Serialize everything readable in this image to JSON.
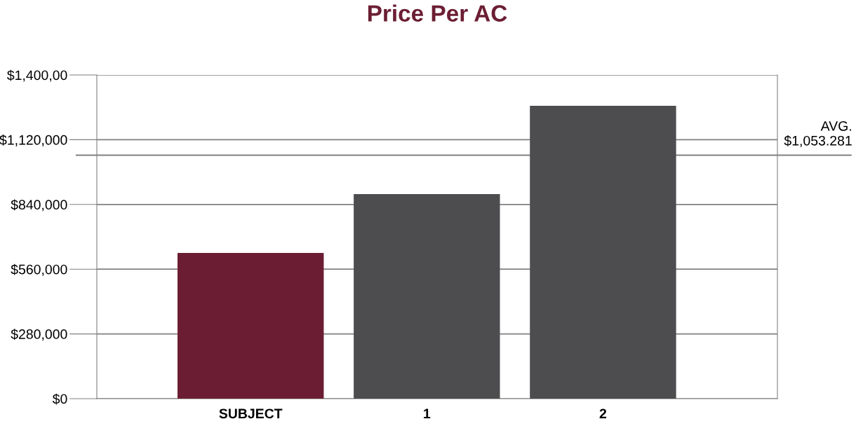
{
  "chart_data": {
    "type": "bar",
    "title": "Price Per AC",
    "categories": [
      "SUBJECT",
      "1",
      "2"
    ],
    "values": [
      630000,
      885000,
      1267000
    ],
    "colors": [
      "#6b1e33",
      "#4d4d4f",
      "#4d4d4f"
    ],
    "ylim": [
      0,
      1400000
    ],
    "yticks": [
      {
        "value": 0,
        "label": "$0"
      },
      {
        "value": 280000,
        "label": "$280,000"
      },
      {
        "value": 560000,
        "label": "$560,000"
      },
      {
        "value": 840000,
        "label": "$840,000"
      },
      {
        "value": 1120000,
        "label": "$1,120,000"
      },
      {
        "value": 1400000,
        "label": "$1,400,00"
      }
    ],
    "grid": "y",
    "ref_lines": [
      {
        "axis": "y",
        "value": 1053281,
        "label": "AVG.\n$1,053.281",
        "color": "#808080"
      }
    ]
  }
}
